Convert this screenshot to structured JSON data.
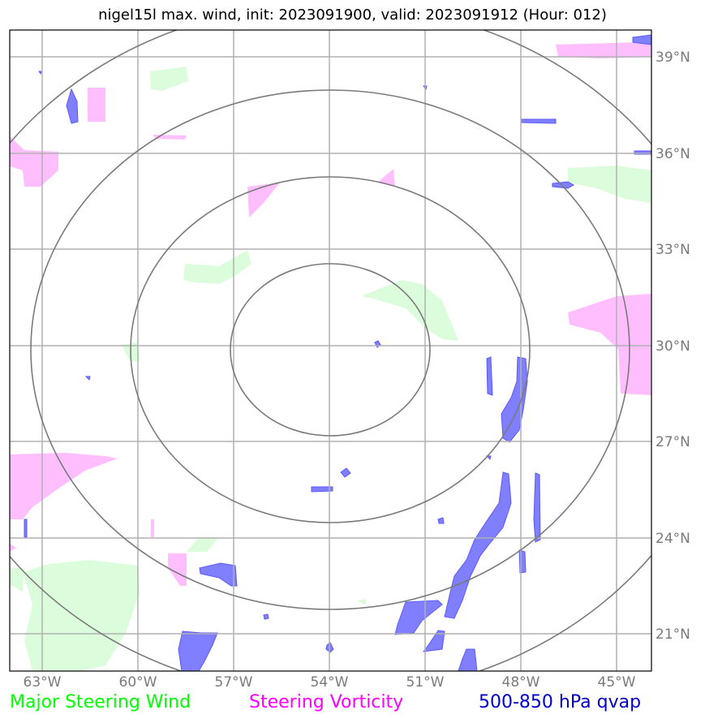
{
  "title": "nigel15l max. wind, init: 2023091900, valid: 2023091912 (Hour: 012)",
  "lon_labels": [
    "63°W",
    "60°W",
    "57°W",
    "54°W",
    "51°W",
    "48°W",
    "45°W"
  ],
  "lat_labels": [
    "39°N",
    "36°N",
    "33°N",
    "30°N",
    "27°N",
    "24°N",
    "21°N"
  ],
  "legend": {
    "wind": {
      "label": "Major Steering Wind",
      "color": "#00ff00"
    },
    "vorticity": {
      "label": "Steering Vorticity",
      "color": "#ff00ff"
    },
    "qvap": {
      "label": "500-850 hPa qvap",
      "color": "#0000cc"
    }
  },
  "colors": {
    "wind_fill": "#dcfddc",
    "vorticity_fill": "#ffbfff",
    "qvap_fill": "#7f7fff",
    "range_ring": "#7a7a7a",
    "grid": "#b0b0b0"
  }
}
